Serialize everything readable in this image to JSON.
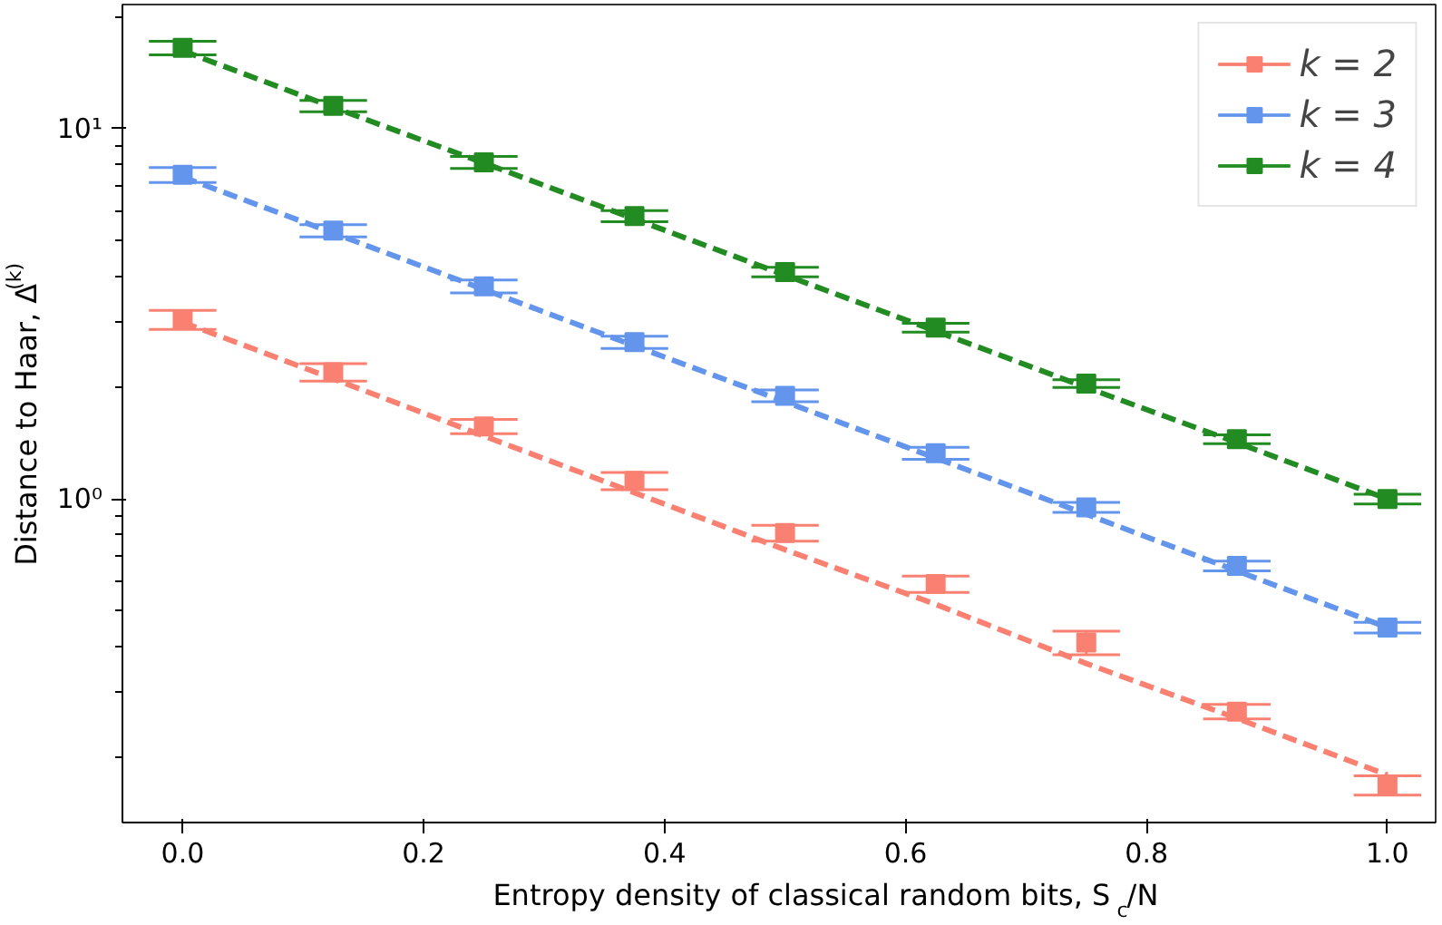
{
  "chart_data": {
    "type": "scatter",
    "xlabel": "Entropy density of classical random bits, S$_{c}$/N",
    "ylabel": "Distance to Haar, Δ$^{(k)}$",
    "x": [
      0,
      0.125,
      0.25,
      0.375,
      0.5,
      0.625,
      0.75,
      0.875,
      1.0
    ],
    "series": [
      {
        "name": "k = 2",
        "color": "#fa8072",
        "values": [
          3.05,
          2.2,
          1.57,
          1.12,
          0.81,
          0.59,
          0.41,
          0.267,
          0.169
        ],
        "errors": [
          0.18,
          0.12,
          0.07,
          0.06,
          0.04,
          0.03,
          0.03,
          0.012,
          0.01
        ]
      },
      {
        "name": "k = 3",
        "color": "#6495ed",
        "values": [
          7.5,
          5.3,
          3.75,
          2.65,
          1.9,
          1.33,
          0.95,
          0.66,
          0.45
        ],
        "errors": [
          0.35,
          0.2,
          0.15,
          0.1,
          0.07,
          0.05,
          0.03,
          0.02,
          0.015
        ]
      },
      {
        "name": "k = 4",
        "color": "#228b22",
        "values": [
          16.5,
          11.5,
          8.1,
          5.8,
          4.1,
          2.9,
          2.05,
          1.45,
          1.0
        ],
        "errors": [
          0.7,
          0.4,
          0.3,
          0.2,
          0.12,
          0.08,
          0.05,
          0.04,
          0.03
        ]
      },
      {
        "type": "line",
        "marker": "none",
        "color": "#fa8072",
        "values": [
          3.0,
          2.11,
          1.48,
          1.04,
          0.73,
          0.52,
          0.36,
          0.256,
          0.18
        ]
      },
      {
        "type": "line",
        "marker": "none",
        "color": "#6495ed",
        "values": [
          7.4,
          5.22,
          3.68,
          2.59,
          1.83,
          1.29,
          0.91,
          0.64,
          0.45
        ]
      },
      {
        "type": "line",
        "marker": "none",
        "color": "#228b22",
        "values": [
          16.2,
          11.4,
          8.07,
          5.7,
          4.02,
          2.84,
          2.0,
          1.42,
          1.0
        ]
      }
    ],
    "marker": "square",
    "line_style": "dashed",
    "log": "y",
    "legend": "top right",
    "grid": false,
    "xlim": [
      -0.05,
      1.04
    ],
    "ylim": [
      0.134,
      21.6
    ],
    "xticks": [
      {
        "value": 0,
        "label": "0.0"
      },
      {
        "value": 0.2,
        "label": "0.2"
      },
      {
        "value": 0.4,
        "label": "0.4"
      },
      {
        "value": 0.6,
        "label": "0.6"
      },
      {
        "value": 0.8,
        "label": "0.8"
      },
      {
        "value": 1.0,
        "label": "1.0"
      }
    ],
    "yticks": [
      {
        "value": 1,
        "label": "10⁰"
      },
      {
        "value": 10,
        "label": "10¹"
      }
    ]
  }
}
